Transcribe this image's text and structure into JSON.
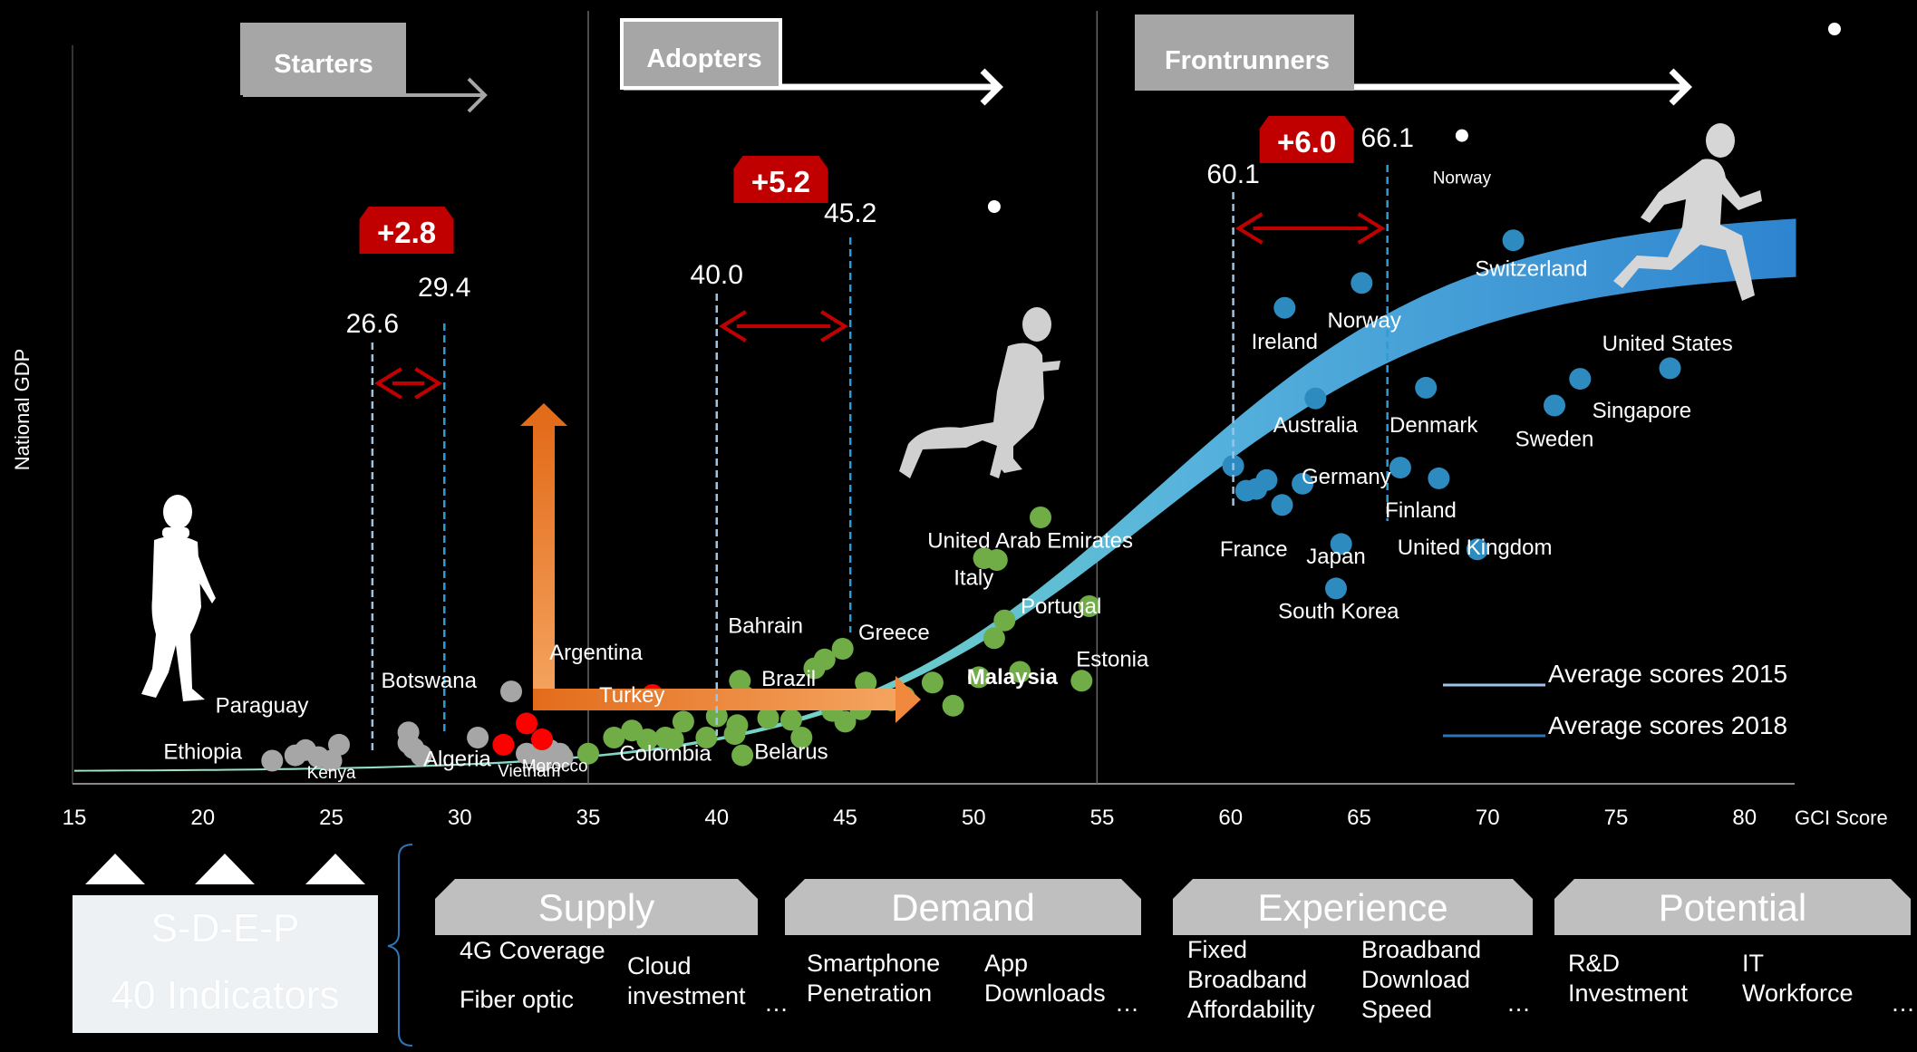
{
  "chart_data": {
    "type": "scatter",
    "xlabel": "GCI Score",
    "ylabel": "National GDP",
    "xlim": [
      15,
      82
    ],
    "x_ticks": [
      15,
      20,
      25,
      30,
      35,
      40,
      45,
      50,
      55,
      60,
      65,
      70,
      75,
      80
    ],
    "stages": [
      {
        "name": "Starters",
        "color": "#a6a6a6"
      },
      {
        "name": "Adopters",
        "color": "#ffffff"
      },
      {
        "name": "Frontrunners",
        "color": "#ffffff"
      }
    ],
    "stage_boundaries": [
      35,
      54.8
    ],
    "averages": [
      {
        "stage": "Starters",
        "score_2015": 26.6,
        "score_2018": 29.4,
        "change": "+2.8"
      },
      {
        "stage": "Adopters",
        "score_2015": 40.0,
        "score_2018": 45.2,
        "change": "+5.2"
      },
      {
        "stage": "Frontrunners",
        "score_2015": 60.1,
        "score_2018": 66.1,
        "change": "+6.0"
      }
    ],
    "average_labels": [
      "26.6",
      "29.4",
      "40.0",
      "45.2",
      "60.1",
      "66.1"
    ],
    "legend": {
      "position": "bottom-right",
      "items": [
        {
          "label": "Average scores 2015",
          "color": "#9dc3e6"
        },
        {
          "label": "Average scores 2018",
          "color": "#2e75b6"
        }
      ]
    },
    "series": [
      {
        "group": "Starters",
        "color": "#a6a6a6",
        "points": [
          [
            22.7,
            1.3
          ],
          [
            23.6,
            1.6
          ],
          [
            24,
            1.9
          ],
          [
            24.5,
            1.5
          ],
          [
            25,
            1.3
          ],
          [
            25.3,
            2.2
          ],
          [
            28,
            2.9
          ],
          [
            28,
            2.3
          ],
          [
            28.2,
            2.0
          ],
          [
            28.5,
            1.6
          ],
          [
            30.7,
            2.6
          ],
          [
            32,
            5.2
          ],
          [
            32.6,
            1.7
          ],
          [
            33,
            1.6
          ],
          [
            33.2,
            1.3
          ],
          [
            33.5,
            1.9
          ],
          [
            33.9,
            1.7
          ],
          [
            34,
            1.5
          ]
        ]
      },
      {
        "group": "Starters-highlight",
        "color": "#ff0000",
        "points": [
          [
            32.6,
            3.4
          ],
          [
            31.7,
            2.2
          ],
          [
            33.2,
            2.5
          ],
          [
            37.5,
            5.0
          ]
        ]
      },
      {
        "group": "Adopters",
        "color": "#70ad47",
        "points": [
          [
            35,
            1.7
          ],
          [
            36,
            2.6
          ],
          [
            36.7,
            3.0
          ],
          [
            37.3,
            2.5
          ],
          [
            38,
            2.6
          ],
          [
            38.7,
            3.5
          ],
          [
            38.3,
            2.5
          ],
          [
            39.6,
            2.6
          ],
          [
            40,
            3.8
          ],
          [
            40.7,
            2.8
          ],
          [
            40.8,
            3.3
          ],
          [
            40.9,
            5.8
          ],
          [
            41,
            1.6
          ],
          [
            41.1,
            4.9
          ],
          [
            42,
            3.7
          ],
          [
            42.9,
            3.6
          ],
          [
            43.3,
            2.6
          ],
          [
            43.8,
            6.5
          ],
          [
            44.2,
            7.0
          ],
          [
            44.5,
            4.1
          ],
          [
            44.9,
            7.6
          ],
          [
            45,
            3.5
          ],
          [
            45.6,
            4.2
          ],
          [
            45.8,
            5.7
          ],
          [
            46.8,
            4.7
          ],
          [
            47.3,
            4.9
          ],
          [
            48.4,
            5.7
          ],
          [
            49.2,
            4.4
          ],
          [
            50.2,
            6.0
          ],
          [
            50.4,
            12.7
          ],
          [
            50.8,
            8.2
          ],
          [
            50.9,
            12.6
          ],
          [
            51.2,
            9.2
          ],
          [
            51.8,
            6.3
          ],
          [
            52.6,
            15.0
          ],
          [
            54.2,
            5.8
          ],
          [
            54.5,
            10.0
          ]
        ]
      },
      {
        "group": "Frontrunners",
        "color": "#2e8bc0",
        "points": [
          [
            60.1,
            17.9
          ],
          [
            60.6,
            16.5
          ],
          [
            61,
            16.6
          ],
          [
            61.4,
            17.1
          ],
          [
            62,
            15.7
          ],
          [
            62.1,
            26.8
          ],
          [
            62.8,
            16.9
          ],
          [
            63.3,
            21.7
          ],
          [
            64.3,
            13.5
          ],
          [
            64.1,
            11.0
          ],
          [
            65.1,
            28.2
          ],
          [
            66.6,
            17.8
          ],
          [
            67.6,
            22.3
          ],
          [
            68.1,
            17.2
          ],
          [
            69.6,
            13.2
          ],
          [
            71,
            30.6
          ],
          [
            72.6,
            21.3
          ],
          [
            73.6,
            22.8
          ],
          [
            77.1,
            23.4
          ]
        ]
      }
    ],
    "white_markers": [
      [
        50.8,
        32.5
      ],
      [
        69,
        36.5
      ],
      [
        83.5,
        42.5
      ]
    ],
    "country_labels": [
      {
        "name": "Ethiopia",
        "x": 20,
        "y": 1.4
      },
      {
        "name": "Kenya",
        "x": 25,
        "y": 0.3
      },
      {
        "name": "Paraguay",
        "x": 22.3,
        "y": 4.0
      },
      {
        "name": "Botswana",
        "x": 28.8,
        "y": 5.4
      },
      {
        "name": "Algeria",
        "x": 29.9,
        "y": 1.0
      },
      {
        "name": "Vietnam",
        "x": 32.7,
        "y": 0.4
      },
      {
        "name": "Morocco",
        "x": 33.7,
        "y": 0.7
      },
      {
        "name": "Argentina",
        "x": 35.3,
        "y": 7.0
      },
      {
        "name": "Turkey",
        "x": 36.7,
        "y": 4.6
      },
      {
        "name": "Colombia",
        "x": 38,
        "y": 1.3
      },
      {
        "name": "Bahrain",
        "x": 41.9,
        "y": 8.5
      },
      {
        "name": "Greece",
        "x": 46.9,
        "y": 8.1
      },
      {
        "name": "Brazil",
        "x": 42.8,
        "y": 5.5
      },
      {
        "name": "Belarus",
        "x": 42.9,
        "y": 1.4
      },
      {
        "name": "Malaysia",
        "x": 51.5,
        "y": 5.6
      },
      {
        "name": "Estonia",
        "x": 55.4,
        "y": 6.6
      },
      {
        "name": "Portugal",
        "x": 53.4,
        "y": 9.6
      },
      {
        "name": "Italy",
        "x": 50,
        "y": 11.2
      },
      {
        "name": "United Arab Emirates",
        "x": 52.2,
        "y": 13.3
      },
      {
        "name": "France",
        "x": 60.9,
        "y": 12.8
      },
      {
        "name": "Japan",
        "x": 64.1,
        "y": 12.4
      },
      {
        "name": "South Korea",
        "x": 64.2,
        "y": 9.3
      },
      {
        "name": "Germany",
        "x": 64.5,
        "y": 16.9
      },
      {
        "name": "Australia",
        "x": 63.3,
        "y": 19.8
      },
      {
        "name": "Ireland",
        "x": 62.1,
        "y": 24.5
      },
      {
        "name": "Norway",
        "x": 65.2,
        "y": 25.7
      },
      {
        "name": "Norway",
        "x": 69,
        "y": 33.8
      },
      {
        "name": "Finland",
        "x": 67.4,
        "y": 15.0
      },
      {
        "name": "Denmark",
        "x": 67.9,
        "y": 19.8
      },
      {
        "name": "United Kingdom",
        "x": 69.5,
        "y": 12.9
      },
      {
        "name": "Switzerland",
        "x": 71.7,
        "y": 28.6
      },
      {
        "name": "Sweden",
        "x": 72.6,
        "y": 19.0
      },
      {
        "name": "Singapore",
        "x": 76,
        "y": 20.6
      },
      {
        "name": "United States",
        "x": 77,
        "y": 24.4
      }
    ],
    "bold_labels": [
      "Malaysia"
    ]
  },
  "pillars": [
    {
      "title": "Supply",
      "indicators": [
        "4G Coverage",
        "Fiber optic",
        "Cloud investment"
      ]
    },
    {
      "title": "Demand",
      "indicators": [
        "Smartphone Penetration",
        "App Downloads"
      ]
    },
    {
      "title": "Experience",
      "indicators": [
        "Fixed Broadband Affordability",
        "Broadband Download Speed"
      ]
    },
    {
      "title": "Potential",
      "indicators": [
        "R&D Investment",
        "IT Workforce"
      ]
    }
  ],
  "sdep_box": {
    "line1": "S-D-E-P",
    "line2": "40 Indicators"
  },
  "ellipsis": "…",
  "colors": {
    "red": "#c00000",
    "orange": "#ed7d31",
    "gray_dot": "#a6a6a6",
    "green_dot": "#70ad47",
    "blue_dot": "#2e8bc0"
  }
}
